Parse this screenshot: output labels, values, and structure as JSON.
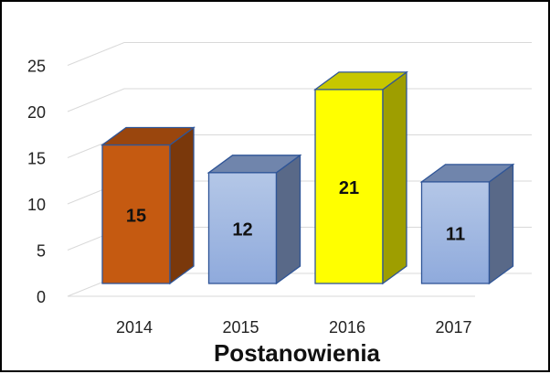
{
  "chart_data": {
    "type": "bar",
    "categories": [
      "2014",
      "2015",
      "2016",
      "2017"
    ],
    "values": [
      15,
      12,
      21,
      11
    ],
    "data_labels": [
      "15",
      "12",
      "21",
      "11"
    ],
    "xlabel": "Postanowienia",
    "ylabel": "",
    "ylim": [
      0,
      25
    ],
    "yticks": [
      "0",
      "5",
      "10",
      "15",
      "20",
      "25"
    ],
    "grid": true,
    "legend": "none",
    "bar_colors": [
      "#c55a11",
      "#8faadc",
      "#ffff00",
      "#8faadc"
    ]
  }
}
